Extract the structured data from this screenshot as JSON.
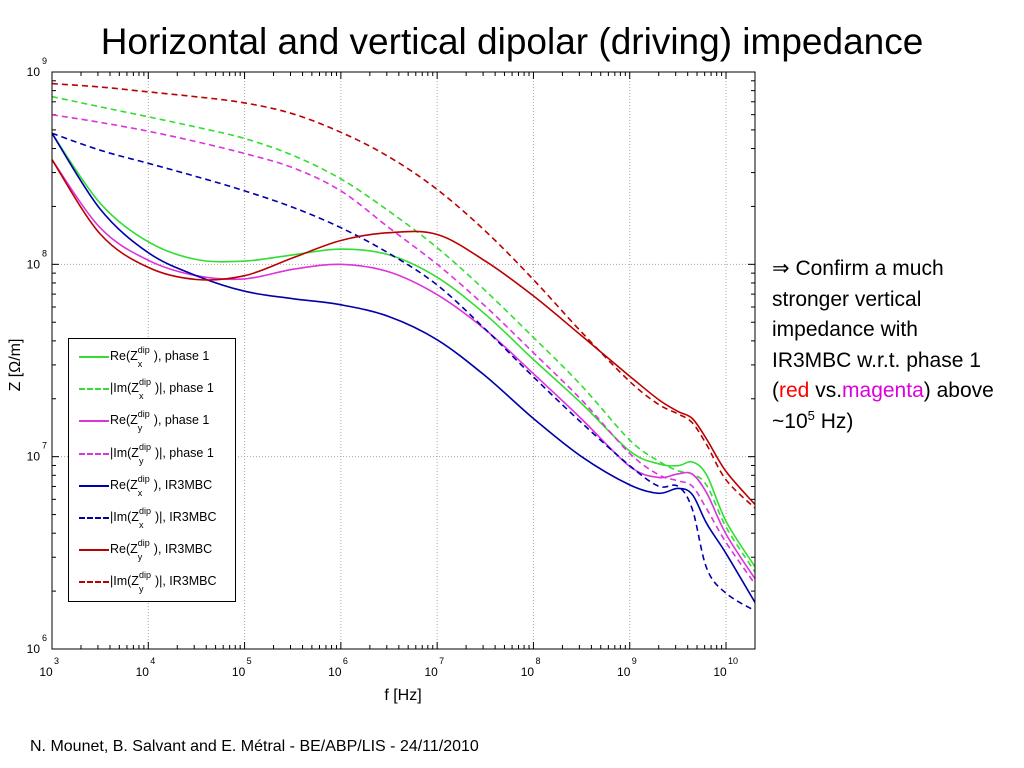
{
  "slide": {
    "title": "Horizontal and vertical dipolar (driving) impedance",
    "footer": "N. Mounet, B. Salvant and E. Métral - BE/ABP/LIS - 24/11/2010"
  },
  "annotation": {
    "arrow": "⇒",
    "text_1": " Confirm a much stronger vertical impedance with IR3MBC w.r.t. phase 1 (",
    "red_word": "red",
    "vs": " vs.",
    "magenta_word": "magenta",
    "text_2": ") above ~10",
    "exponent": "5",
    "text_3": " Hz)",
    "colors": {
      "red": "#ff0000",
      "magenta": "#dd00dd"
    }
  },
  "chart_data": {
    "type": "line",
    "title": "",
    "xlabel": "f [Hz]",
    "ylabel": "Z [Ω/m]",
    "xscale": "log",
    "yscale": "log",
    "xlim": [
      1000,
      20000000000
    ],
    "ylim": [
      1000000,
      1000000000
    ],
    "grid": true,
    "legend_position": "lower-left",
    "x_ticks": [
      {
        "base": "10",
        "exp": "3"
      },
      {
        "base": "10",
        "exp": "4"
      },
      {
        "base": "10",
        "exp": "5"
      },
      {
        "base": "10",
        "exp": "6"
      },
      {
        "base": "10",
        "exp": "7"
      },
      {
        "base": "10",
        "exp": "8"
      },
      {
        "base": "10",
        "exp": "9"
      },
      {
        "base": "10",
        "exp": "10"
      }
    ],
    "y_ticks": [
      {
        "base": "10",
        "exp": "6"
      },
      {
        "base": "10",
        "exp": "7"
      },
      {
        "base": "10",
        "exp": "8"
      },
      {
        "base": "10",
        "exp": "9"
      }
    ],
    "x_log10": [
      3.0,
      3.5,
      4.0,
      4.5,
      5.0,
      5.5,
      6.0,
      6.5,
      7.0,
      7.5,
      8.0,
      8.5,
      9.0,
      9.3,
      9.5,
      9.65,
      9.8,
      10.0,
      10.3
    ],
    "series": [
      {
        "name": "Re(Z_x^dip), phase 1",
        "color": "#33dd33",
        "dash": false,
        "values": [
          480000000.0,
          208000000.0,
          131000000.0,
          106000000.0,
          104000000.0,
          112000000.0,
          120000000.0,
          112000000.0,
          85600000.0,
          55000000.0,
          32000000.0,
          18900000.0,
          10700000.0,
          9180000.0,
          8980000.0,
          9380000.0,
          8000000.0,
          4620000.0,
          2680000.0
        ]
      },
      {
        "name": "|Im(Z_x^dip)|, phase 1",
        "color": "#33dd33",
        "dash": true,
        "values": [
          745000000.0,
          659000000.0,
          585000000.0,
          517000000.0,
          451000000.0,
          369000000.0,
          278000000.0,
          189000000.0,
          122000000.0,
          73000000.0,
          41700000.0,
          23400000.0,
          12200000.0,
          9480000.0,
          8440000.0,
          8120000.0,
          7080000.0,
          4310000.0,
          2520000.0
        ]
      },
      {
        "name": "Re(Z_y^dip), phase 1",
        "color": "#dd33dd",
        "dash": false,
        "values": [
          350000000.0,
          155000000.0,
          105000000.0,
          87300000.0,
          84000000.0,
          94200000.0,
          100000000.0,
          91300000.0,
          69500000.0,
          45800000.0,
          27000000.0,
          15700000.0,
          8900000.0,
          7800000.0,
          8140000.0,
          8110000.0,
          6460000.0,
          3960000.0,
          2320000.0
        ]
      },
      {
        "name": "|Im(Z_y^dip)|, phase 1",
        "color": "#dd33dd",
        "dash": true,
        "values": [
          600000000.0,
          547000000.0,
          492000000.0,
          434000000.0,
          377000000.0,
          318000000.0,
          241000000.0,
          155000000.0,
          100000000.0,
          60600000.0,
          34700000.0,
          19700000.0,
          10400000.0,
          8060000.0,
          7490000.0,
          7020000.0,
          5340000.0,
          3580000.0,
          2180000.0
        ]
      },
      {
        "name": "Re(Z_x^dip), IR3MBC",
        "color": "#0000aa",
        "dash": false,
        "values": [
          480000000.0,
          194000000.0,
          115000000.0,
          87300000.0,
          72500000.0,
          66300000.0,
          61600000.0,
          53500000.0,
          40500000.0,
          26300000.0,
          15800000.0,
          10000000.0,
          7130000.0,
          6450000.0,
          6840000.0,
          6360000.0,
          4480000.0,
          3140000.0,
          1750000.0
        ]
      },
      {
        "name": "|Im(Z_x^dip)|, IR3MBC",
        "color": "#0000aa",
        "dash": true,
        "values": [
          480000000.0,
          392000000.0,
          335000000.0,
          286000000.0,
          241000000.0,
          198000000.0,
          155000000.0,
          114000000.0,
          78100000.0,
          46000000.0,
          26000000.0,
          15000000.0,
          8980000.0,
          7020000.0,
          7020000.0,
          5340000.0,
          2620000.0,
          1950000.0,
          1580000.0
        ]
      },
      {
        "name": "Re(Z_y^dip), IR3MBC",
        "color": "#bb0000",
        "dash": false,
        "values": [
          350000000.0,
          144000000.0,
          96400000.0,
          83400000.0,
          87300000.0,
          108000000.0,
          133000000.0,
          146000000.0,
          143000000.0,
          104000000.0,
          68500000.0,
          42500000.0,
          26200000.0,
          19800000.0,
          17200000.0,
          15800000.0,
          12300000.0,
          8380000.0,
          5650000.0
        ]
      },
      {
        "name": "|Im(Z_y^dip)|, IR3MBC",
        "color": "#bb0000",
        "dash": true,
        "values": [
          870000000.0,
          836000000.0,
          788000000.0,
          743000000.0,
          691000000.0,
          606000000.0,
          486000000.0,
          362000000.0,
          245000000.0,
          149000000.0,
          83300000.0,
          44400000.0,
          24600000.0,
          18700000.0,
          16700000.0,
          15000000.0,
          11500000.0,
          7580000.0,
          5400000.0
        ]
      }
    ]
  },
  "legend": {
    "items": [
      {
        "pre": "Re(Z",
        "sup": "dip",
        "sub": "x",
        "post": "), phase 1"
      },
      {
        "pre": "|Im(Z",
        "sup": "dip",
        "sub": "x",
        "post": ")|, phase 1"
      },
      {
        "pre": "Re(Z",
        "sup": "dip",
        "sub": "y",
        "post": "), phase 1"
      },
      {
        "pre": "|Im(Z",
        "sup": "dip",
        "sub": "y",
        "post": ")|, phase 1"
      },
      {
        "pre": "Re(Z",
        "sup": "dip",
        "sub": "x",
        "post": "), IR3MBC"
      },
      {
        "pre": "|Im(Z",
        "sup": "dip",
        "sub": "x",
        "post": ")|, IR3MBC"
      },
      {
        "pre": "Re(Z",
        "sup": "dip",
        "sub": "y",
        "post": "), IR3MBC"
      },
      {
        "pre": "|Im(Z",
        "sup": "dip",
        "sub": "y",
        "post": ")|, IR3MBC"
      }
    ]
  }
}
